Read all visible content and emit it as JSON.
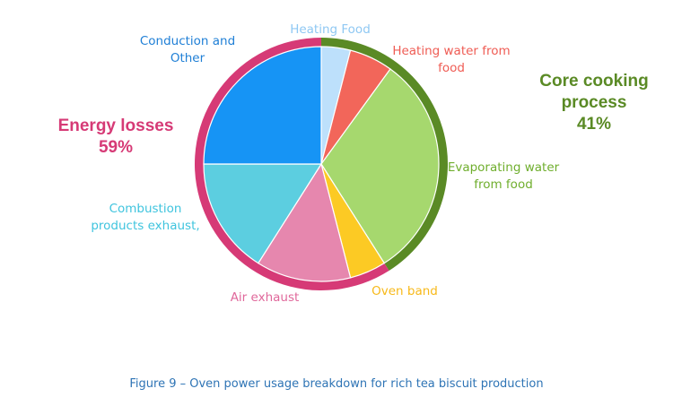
{
  "chart_data": {
    "type": "pie",
    "slices": [
      {
        "label": "Heating Food",
        "lines": [
          "Heating Food"
        ],
        "value": 4,
        "color": "#bde0fb",
        "text_color": "#8fc8f3"
      },
      {
        "label": "Heating water from food",
        "lines": [
          "Heating water from",
          "food"
        ],
        "value": 6,
        "color": "#f2665a",
        "text_color": "#ef5c54"
      },
      {
        "label": "Evaporating water from food",
        "lines": [
          "Evaporating water",
          "from food"
        ],
        "value": 31,
        "color": "#a6d86e",
        "text_color": "#6fae2d"
      },
      {
        "label": "Oven band",
        "lines": [
          "Oven band"
        ],
        "value": 5,
        "color": "#fcca24",
        "text_color": "#f7b91a"
      },
      {
        "label": "Air exhaust",
        "lines": [
          "Air exhaust"
        ],
        "value": 13,
        "color": "#e687ae",
        "text_color": "#e0689b"
      },
      {
        "label": "Combustion products exhaust,",
        "lines": [
          "Combustion",
          "products exhaust,"
        ],
        "value": 16,
        "color": "#5ccee0",
        "text_color": "#3fc4de"
      },
      {
        "label": "Conduction and Other",
        "lines": [
          "Conduction and",
          "Other"
        ],
        "value": 25,
        "color": "#1694f5",
        "text_color": "#1f7fd6"
      }
    ],
    "groups": [
      {
        "name": "Core cooking process",
        "lines": [
          "Core cooking",
          "process",
          "41%"
        ],
        "percent": 41,
        "color": "#5a8a25"
      },
      {
        "name": "Energy losses",
        "lines": [
          "Energy losses",
          "59%"
        ],
        "percent": 59,
        "color": "#d63a76"
      }
    ]
  },
  "caption": "Figure 9 – Oven power usage breakdown for rich tea biscuit production"
}
